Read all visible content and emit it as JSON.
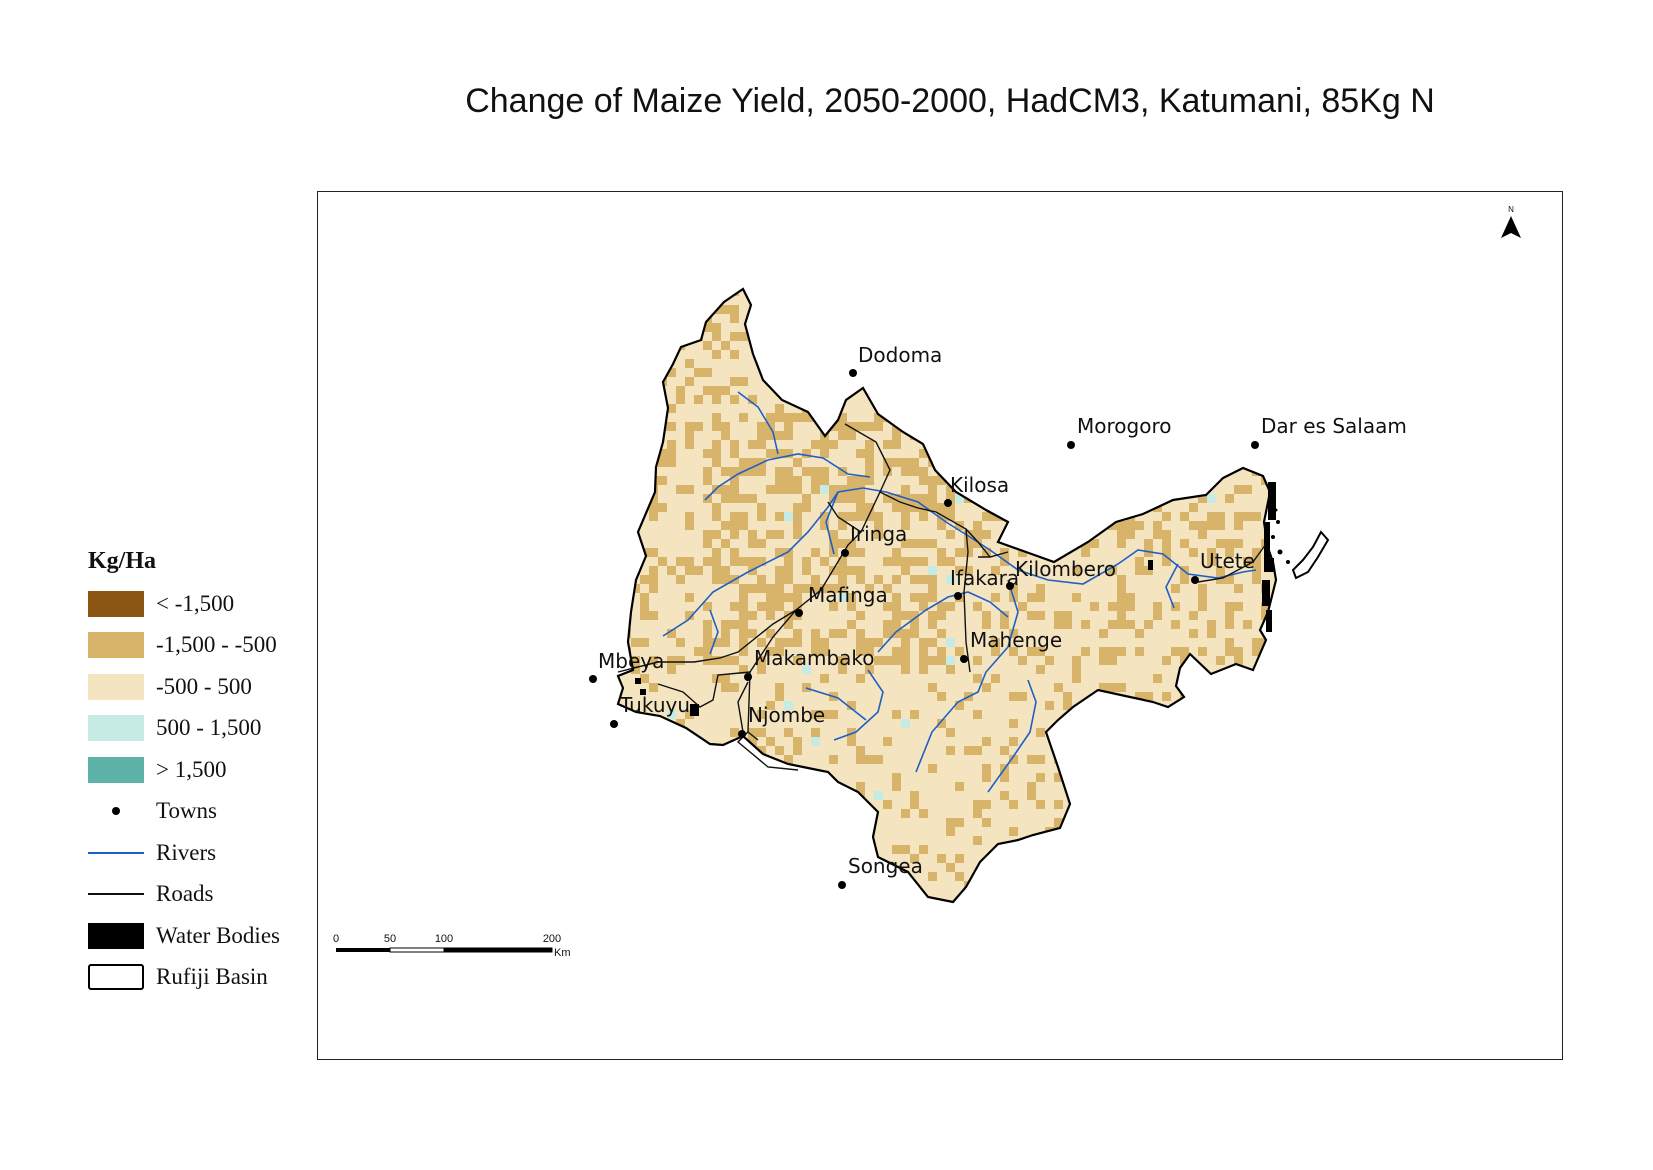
{
  "title": "Change of Maize Yield, 2050-2000, HadCM3, Katumani, 85Kg N",
  "legend": {
    "title": "Kg/Ha",
    "classes": [
      {
        "label": "< -1,500",
        "color": "#8b5513"
      },
      {
        "label": "-1,500 - -500",
        "color": "#d8b46a"
      },
      {
        "label": "-500 - 500",
        "color": "#f4e5c0"
      },
      {
        "label": "500 - 1,500",
        "color": "#c6ebe4"
      },
      {
        "label": "> 1,500",
        "color": "#5db3a8"
      }
    ],
    "towns": "Towns",
    "rivers": "Rivers",
    "roads": "Roads",
    "water_bodies": "Water Bodies",
    "basin": "Rufiji Basin"
  },
  "colors": {
    "river": "#1f5fc4",
    "road": "#111111",
    "water": "#000000"
  },
  "towns": [
    {
      "name": "Dodoma"
    },
    {
      "name": "Morogoro"
    },
    {
      "name": "Dar es Salaam"
    },
    {
      "name": "Kilosa"
    },
    {
      "name": "Iringa"
    },
    {
      "name": "Ifakara"
    },
    {
      "name": "Kilombero"
    },
    {
      "name": "Utete"
    },
    {
      "name": "Mafinga"
    },
    {
      "name": "Mahenge"
    },
    {
      "name": "Mbeya"
    },
    {
      "name": "Makambako"
    },
    {
      "name": "Tukuyu"
    },
    {
      "name": "Njombe"
    },
    {
      "name": "Songea"
    }
  ],
  "north_arrow": {
    "label": "N",
    "icon": "north-arrow-icon"
  },
  "scale_bar": {
    "ticks": [
      "0",
      "50",
      "100",
      "200"
    ],
    "unit": "Km"
  }
}
